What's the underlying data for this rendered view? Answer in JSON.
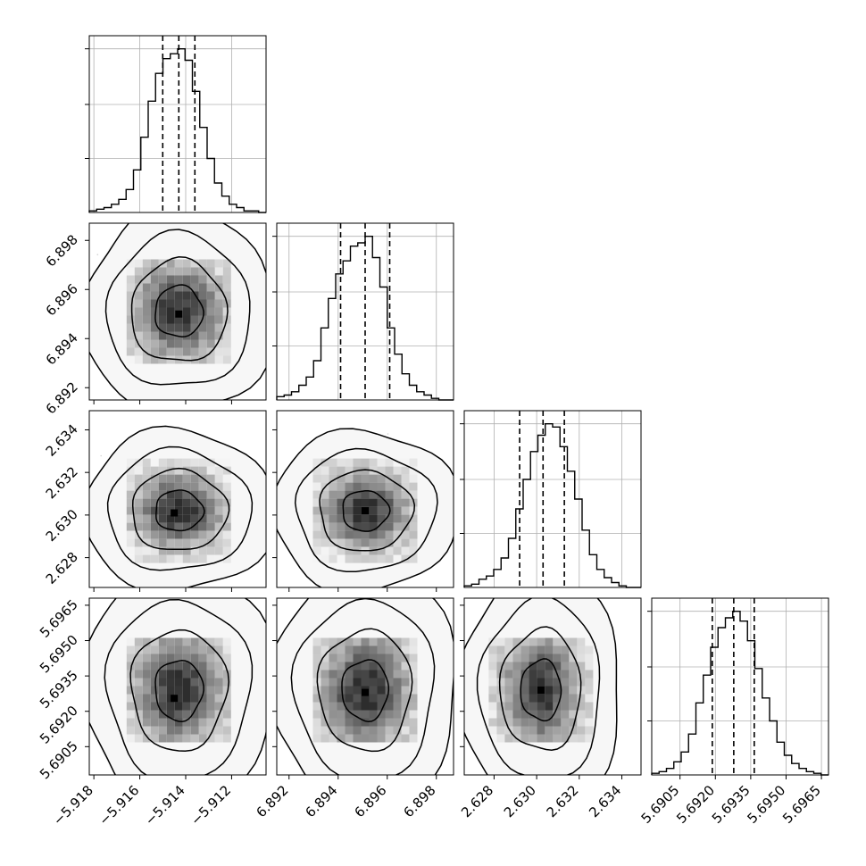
{
  "chart_data": {
    "type": "corner",
    "parameters": [
      {
        "ticks": [
          -5.918,
          -5.916,
          -5.914,
          -5.912
        ],
        "tick_labels": [
          "−5.918",
          "−5.916",
          "−5.914",
          "−5.912"
        ],
        "range": [
          -5.9182,
          -5.9105
        ],
        "quantiles": [
          -5.915,
          -5.9143,
          -5.9136
        ],
        "histogram": [
          1,
          2,
          3,
          5,
          8,
          14,
          26,
          46,
          68,
          85,
          94,
          97,
          100,
          93,
          74,
          52,
          33,
          18,
          10,
          5,
          3,
          1,
          1,
          0
        ]
      },
      {
        "ticks": [
          6.892,
          6.894,
          6.896,
          6.898
        ],
        "tick_labels": [
          "6.892",
          "6.894",
          "6.896",
          "6.898"
        ],
        "range": [
          6.8915,
          6.8987
        ],
        "quantiles": [
          6.8941,
          6.8951,
          6.8961
        ],
        "histogram": [
          2,
          3,
          5,
          9,
          14,
          24,
          44,
          62,
          77,
          85,
          94,
          96,
          100,
          87,
          69,
          44,
          28,
          16,
          9,
          5,
          3,
          1,
          0,
          0
        ]
      },
      {
        "ticks": [
          2.628,
          2.63,
          2.632,
          2.634
        ],
        "tick_labels": [
          "2.628",
          "2.630",
          "2.632",
          "2.634"
        ],
        "range": [
          2.6266,
          2.6349
        ],
        "quantiles": [
          2.6292,
          2.6303,
          2.6313
        ],
        "histogram": [
          1,
          2,
          5,
          7,
          11,
          18,
          30,
          48,
          66,
          83,
          93,
          100,
          98,
          86,
          71,
          54,
          35,
          20,
          11,
          6,
          3,
          1,
          0,
          0
        ]
      },
      {
        "ticks": [
          5.6905,
          5.692,
          5.6935,
          5.695,
          5.6965
        ],
        "tick_labels": [
          "5.6905",
          "5.6920",
          "5.6935",
          "5.6950",
          "5.6965"
        ],
        "range": [
          5.6893,
          5.6968
        ],
        "quantiles": [
          5.69187,
          5.69278,
          5.69365
        ],
        "histogram": [
          1,
          2,
          4,
          8,
          14,
          25,
          44,
          61,
          78,
          90,
          96,
          100,
          94,
          82,
          65,
          47,
          33,
          20,
          12,
          7,
          4,
          2,
          1,
          0
        ]
      }
    ],
    "pairs": [
      {
        "x": 0,
        "y": 1,
        "center": [
          -5.9143,
          6.8951
        ],
        "sd": [
          0.0011,
          0.0011
        ],
        "mode": [
          -5.9143,
          6.895
        ]
      },
      {
        "x": 0,
        "y": 2,
        "center": [
          -5.9143,
          2.6302
        ],
        "sd": [
          0.0011,
          0.001
        ],
        "mode": [
          -5.9145,
          2.6301
        ]
      },
      {
        "x": 1,
        "y": 2,
        "center": [
          6.8951,
          2.6302
        ],
        "sd": [
          0.001,
          0.001
        ],
        "mode": [
          6.8951,
          2.6302
        ]
      },
      {
        "x": 0,
        "y": 3,
        "center": [
          -5.9143,
          5.6929
        ],
        "sd": [
          0.0011,
          0.00135
        ],
        "mode": [
          -5.9145,
          5.69255
        ]
      },
      {
        "x": 1,
        "y": 3,
        "center": [
          6.8951,
          5.6929
        ],
        "sd": [
          0.001,
          0.00135
        ],
        "mode": [
          6.8951,
          5.6928
        ]
      },
      {
        "x": 2,
        "y": 3,
        "center": [
          2.6302,
          5.6929
        ],
        "sd": [
          0.001,
          0.00135
        ],
        "mode": [
          2.6302,
          5.6929
        ]
      }
    ],
    "contour_levels_sigma": [
      0.5,
      1.0,
      1.5,
      2.0
    ],
    "grid": true
  }
}
